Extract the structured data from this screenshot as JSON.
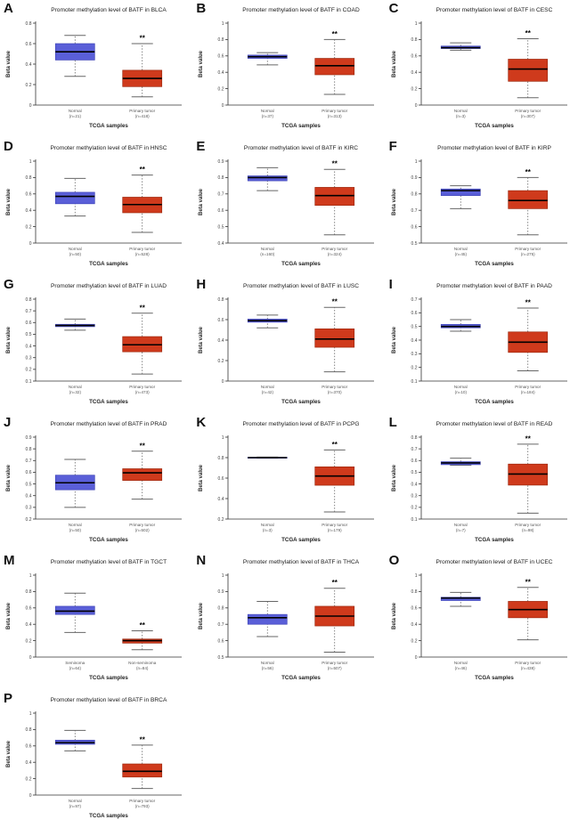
{
  "figure": {
    "title_prefix": "Promoter methylation level of BATF in",
    "ylabel": "Beta value",
    "xlabel": "TCGA samples",
    "significance_marker": "**",
    "colors": {
      "normal_fill": "#5a5fd8",
      "normal_stroke": "#3f44b8",
      "tumor_fill": "#cf3a1c",
      "tumor_stroke": "#9e2a10",
      "median_line": "#000000",
      "whisker": "#666666",
      "axis": "#333333",
      "tick_text": "#444444",
      "group_text": "#555555"
    }
  },
  "chart_data": [
    {
      "type": "box",
      "letter": "A",
      "title": "Promoter methylation level of BATF in BLCA",
      "ylabel": "Beta value",
      "xlabel": "TCGA samples",
      "ylim": [
        0,
        0.8
      ],
      "yticks": [
        0,
        0.2,
        0.4,
        0.6,
        0.8
      ],
      "groups": [
        {
          "label": "Normal",
          "n": "(n=21)",
          "role": "normal",
          "whisker_low": 0.28,
          "q1": 0.44,
          "median": 0.52,
          "q3": 0.6,
          "whisker_high": 0.68,
          "sig": ""
        },
        {
          "label": "Primary tumor",
          "n": "(n=418)",
          "role": "tumor",
          "whisker_low": 0.08,
          "q1": 0.18,
          "median": 0.26,
          "q3": 0.34,
          "whisker_high": 0.6,
          "sig": "**"
        }
      ]
    },
    {
      "type": "box",
      "letter": "B",
      "title": "Promoter methylation level of BATF in COAD",
      "ylabel": "Beta value",
      "xlabel": "TCGA samples",
      "ylim": [
        0,
        1
      ],
      "yticks": [
        0,
        0.2,
        0.4,
        0.6,
        0.8,
        1
      ],
      "groups": [
        {
          "label": "Normal",
          "n": "(n=37)",
          "role": "normal",
          "whisker_low": 0.49,
          "q1": 0.57,
          "median": 0.59,
          "q3": 0.61,
          "whisker_high": 0.64,
          "sig": ""
        },
        {
          "label": "Primary tumor",
          "n": "(n=313)",
          "role": "tumor",
          "whisker_low": 0.13,
          "q1": 0.37,
          "median": 0.48,
          "q3": 0.57,
          "whisker_high": 0.8,
          "sig": "**"
        }
      ]
    },
    {
      "type": "box",
      "letter": "C",
      "title": "Promoter methylation level of BATF in CESC",
      "ylabel": "Beta value",
      "xlabel": "TCGA samples",
      "ylim": [
        0,
        1
      ],
      "yticks": [
        0,
        0.2,
        0.4,
        0.6,
        0.8,
        1
      ],
      "groups": [
        {
          "label": "Normal",
          "n": "(n=3)",
          "role": "normal",
          "whisker_low": 0.67,
          "q1": 0.69,
          "median": 0.7,
          "q3": 0.72,
          "whisker_high": 0.76,
          "sig": ""
        },
        {
          "label": "Primary tumor",
          "n": "(n=307)",
          "role": "tumor",
          "whisker_low": 0.09,
          "q1": 0.29,
          "median": 0.44,
          "q3": 0.56,
          "whisker_high": 0.81,
          "sig": "**"
        }
      ]
    },
    {
      "type": "box",
      "letter": "D",
      "title": "Promoter methylation level of BATF in HNSC",
      "ylabel": "Beta value",
      "xlabel": "TCGA samples",
      "ylim": [
        0,
        1
      ],
      "yticks": [
        0,
        0.2,
        0.4,
        0.6,
        0.8,
        1
      ],
      "groups": [
        {
          "label": "Normal",
          "n": "(n=50)",
          "role": "normal",
          "whisker_low": 0.33,
          "q1": 0.48,
          "median": 0.57,
          "q3": 0.62,
          "whisker_high": 0.79,
          "sig": ""
        },
        {
          "label": "Primary tumor",
          "n": "(n=528)",
          "role": "tumor",
          "whisker_low": 0.13,
          "q1": 0.37,
          "median": 0.47,
          "q3": 0.56,
          "whisker_high": 0.83,
          "sig": "**"
        }
      ]
    },
    {
      "type": "box",
      "letter": "E",
      "title": "Promoter methylation level of BATF in KIRC",
      "ylabel": "Beta value",
      "xlabel": "TCGA samples",
      "ylim": [
        0.4,
        0.9
      ],
      "yticks": [
        0.4,
        0.5,
        0.6,
        0.7,
        0.8,
        0.9
      ],
      "groups": [
        {
          "label": "Normal",
          "n": "(n=160)",
          "role": "normal",
          "whisker_low": 0.72,
          "q1": 0.78,
          "median": 0.8,
          "q3": 0.81,
          "whisker_high": 0.86,
          "sig": ""
        },
        {
          "label": "Primary tumor",
          "n": "(n=324)",
          "role": "tumor",
          "whisker_low": 0.45,
          "q1": 0.63,
          "median": 0.69,
          "q3": 0.74,
          "whisker_high": 0.85,
          "sig": "**"
        }
      ]
    },
    {
      "type": "box",
      "letter": "F",
      "title": "Promoter methylation level of BATF in KIRP",
      "ylabel": "Beta value",
      "xlabel": "TCGA samples",
      "ylim": [
        0.5,
        1
      ],
      "yticks": [
        0.5,
        0.6,
        0.7,
        0.8,
        0.9,
        1
      ],
      "groups": [
        {
          "label": "Normal",
          "n": "(n=45)",
          "role": "normal",
          "whisker_low": 0.71,
          "q1": 0.79,
          "median": 0.82,
          "q3": 0.83,
          "whisker_high": 0.85,
          "sig": ""
        },
        {
          "label": "Primary tumor",
          "n": "(n=275)",
          "role": "tumor",
          "whisker_low": 0.55,
          "q1": 0.71,
          "median": 0.76,
          "q3": 0.82,
          "whisker_high": 0.9,
          "sig": "**"
        }
      ]
    },
    {
      "type": "box",
      "letter": "G",
      "title": "Promoter methylation level of BATF in LUAD",
      "ylabel": "Beta value",
      "xlabel": "TCGA samples",
      "ylim": [
        0.1,
        0.8
      ],
      "yticks": [
        0.1,
        0.2,
        0.3,
        0.4,
        0.5,
        0.6,
        0.7,
        0.8
      ],
      "groups": [
        {
          "label": "Normal",
          "n": "(n=32)",
          "role": "normal",
          "whisker_low": 0.535,
          "q1": 0.565,
          "median": 0.575,
          "q3": 0.585,
          "whisker_high": 0.63,
          "sig": ""
        },
        {
          "label": "Primary tumor",
          "n": "(n=473)",
          "role": "tumor",
          "whisker_low": 0.16,
          "q1": 0.35,
          "median": 0.41,
          "q3": 0.48,
          "whisker_high": 0.68,
          "sig": "**"
        }
      ]
    },
    {
      "type": "box",
      "letter": "H",
      "title": "Promoter methylation level of BATF in LUSC",
      "ylabel": "Beta value",
      "xlabel": "TCGA samples",
      "ylim": [
        0,
        0.8
      ],
      "yticks": [
        0,
        0.2,
        0.4,
        0.6,
        0.8
      ],
      "groups": [
        {
          "label": "Normal",
          "n": "(n=42)",
          "role": "normal",
          "whisker_low": 0.52,
          "q1": 0.575,
          "median": 0.59,
          "q3": 0.605,
          "whisker_high": 0.645,
          "sig": ""
        },
        {
          "label": "Primary tumor",
          "n": "(n=370)",
          "role": "tumor",
          "whisker_low": 0.09,
          "q1": 0.33,
          "median": 0.41,
          "q3": 0.51,
          "whisker_high": 0.72,
          "sig": "**"
        }
      ]
    },
    {
      "type": "box",
      "letter": "I",
      "title": "Promoter methylation level of BATF in PAAD",
      "ylabel": "Beta value",
      "xlabel": "TCGA samples",
      "ylim": [
        0.1,
        0.7
      ],
      "yticks": [
        0.1,
        0.2,
        0.3,
        0.4,
        0.5,
        0.6,
        0.7
      ],
      "groups": [
        {
          "label": "Normal",
          "n": "(n=10)",
          "role": "normal",
          "whisker_low": 0.465,
          "q1": 0.49,
          "median": 0.5,
          "q3": 0.515,
          "whisker_high": 0.55,
          "sig": ""
        },
        {
          "label": "Primary tumor",
          "n": "(n=184)",
          "role": "tumor",
          "whisker_low": 0.175,
          "q1": 0.31,
          "median": 0.385,
          "q3": 0.46,
          "whisker_high": 0.635,
          "sig": "**"
        }
      ]
    },
    {
      "type": "box",
      "letter": "J",
      "title": "Promoter methylation level of BATF in PRAD",
      "ylabel": "Beta value",
      "xlabel": "TCGA samples",
      "ylim": [
        0.2,
        0.9
      ],
      "yticks": [
        0.2,
        0.3,
        0.4,
        0.5,
        0.6,
        0.7,
        0.8,
        0.9
      ],
      "groups": [
        {
          "label": "Normal",
          "n": "(n=50)",
          "role": "normal",
          "whisker_low": 0.3,
          "q1": 0.45,
          "median": 0.51,
          "q3": 0.575,
          "whisker_high": 0.71,
          "sig": ""
        },
        {
          "label": "Primary tumor",
          "n": "(n=502)",
          "role": "tumor",
          "whisker_low": 0.37,
          "q1": 0.53,
          "median": 0.595,
          "q3": 0.63,
          "whisker_high": 0.78,
          "sig": "**"
        }
      ]
    },
    {
      "type": "box",
      "letter": "K",
      "title": "Promoter methylation level of BATF in PCPG",
      "ylabel": "Beta value",
      "xlabel": "TCGA samples",
      "ylim": [
        0.2,
        1
      ],
      "yticks": [
        0.2,
        0.4,
        0.6,
        0.8,
        1
      ],
      "groups": [
        {
          "label": "Normal",
          "n": "(n=3)",
          "role": "normal",
          "whisker_low": 0.795,
          "q1": 0.797,
          "median": 0.8,
          "q3": 0.803,
          "whisker_high": 0.805,
          "sig": ""
        },
        {
          "label": "Primary tumor",
          "n": "(n=179)",
          "role": "tumor",
          "whisker_low": 0.27,
          "q1": 0.53,
          "median": 0.62,
          "q3": 0.71,
          "whisker_high": 0.875,
          "sig": "**"
        }
      ]
    },
    {
      "type": "box",
      "letter": "L",
      "title": "Promoter methylation level of BATF in READ",
      "ylabel": "Beta value",
      "xlabel": "TCGA samples",
      "ylim": [
        0.1,
        0.8
      ],
      "yticks": [
        0.1,
        0.2,
        0.3,
        0.4,
        0.5,
        0.6,
        0.7,
        0.8
      ],
      "groups": [
        {
          "label": "Normal",
          "n": "(n=7)",
          "role": "normal",
          "whisker_low": 0.56,
          "q1": 0.565,
          "median": 0.58,
          "q3": 0.59,
          "whisker_high": 0.62,
          "sig": ""
        },
        {
          "label": "Primary tumor",
          "n": "(n=98)",
          "role": "tumor",
          "whisker_low": 0.15,
          "q1": 0.39,
          "median": 0.485,
          "q3": 0.57,
          "whisker_high": 0.74,
          "sig": "**"
        }
      ]
    },
    {
      "type": "box",
      "letter": "M",
      "title": "Promoter methylation level of BATF in TGCT",
      "ylabel": "Beta value",
      "xlabel": "TCGA samples",
      "ylim": [
        0,
        1
      ],
      "yticks": [
        0,
        0.2,
        0.4,
        0.6,
        0.8,
        1
      ],
      "groups": [
        {
          "label": "Seminoma",
          "n": "(n=64)",
          "role": "normal",
          "whisker_low": 0.3,
          "q1": 0.52,
          "median": 0.56,
          "q3": 0.62,
          "whisker_high": 0.78,
          "sig": ""
        },
        {
          "label": "Non-seminoma",
          "n": "(n=84)",
          "role": "tumor",
          "whisker_low": 0.09,
          "q1": 0.17,
          "median": 0.2,
          "q3": 0.22,
          "whisker_high": 0.32,
          "sig": "**"
        }
      ]
    },
    {
      "type": "box",
      "letter": "N",
      "title": "Promoter methylation level of BATF in THCA",
      "ylabel": "Beta value",
      "xlabel": "TCGA samples",
      "ylim": [
        0.5,
        1
      ],
      "yticks": [
        0.5,
        0.6,
        0.7,
        0.8,
        0.9,
        1
      ],
      "groups": [
        {
          "label": "Normal",
          "n": "(n=56)",
          "role": "normal",
          "whisker_low": 0.625,
          "q1": 0.7,
          "median": 0.74,
          "q3": 0.76,
          "whisker_high": 0.84,
          "sig": ""
        },
        {
          "label": "Primary tumor",
          "n": "(n=507)",
          "role": "tumor",
          "whisker_low": 0.53,
          "q1": 0.69,
          "median": 0.75,
          "q3": 0.81,
          "whisker_high": 0.92,
          "sig": "**"
        }
      ]
    },
    {
      "type": "box",
      "letter": "O",
      "title": "Promoter methylation level of BATF in UCEC",
      "ylabel": "Beta value",
      "xlabel": "TCGA samples",
      "ylim": [
        0,
        1
      ],
      "yticks": [
        0,
        0.2,
        0.4,
        0.6,
        0.8,
        1
      ],
      "groups": [
        {
          "label": "Normal",
          "n": "(n=46)",
          "role": "normal",
          "whisker_low": 0.62,
          "q1": 0.69,
          "median": 0.72,
          "q3": 0.73,
          "whisker_high": 0.79,
          "sig": ""
        },
        {
          "label": "Primary tumor",
          "n": "(n=438)",
          "role": "tumor",
          "whisker_low": 0.21,
          "q1": 0.48,
          "median": 0.58,
          "q3": 0.68,
          "whisker_high": 0.85,
          "sig": "**"
        }
      ]
    },
    {
      "type": "box",
      "letter": "P",
      "title": "Promoter methylation level of BATF in BRCA",
      "ylabel": "Beta value",
      "xlabel": "TCGA samples",
      "ylim": [
        0,
        1
      ],
      "yticks": [
        0,
        0.2,
        0.4,
        0.6,
        0.8,
        1
      ],
      "groups": [
        {
          "label": "Normal",
          "n": "(n=97)",
          "role": "normal",
          "whisker_low": 0.54,
          "q1": 0.62,
          "median": 0.64,
          "q3": 0.67,
          "whisker_high": 0.79,
          "sig": ""
        },
        {
          "label": "Primary tumor",
          "n": "(n=793)",
          "role": "tumor",
          "whisker_low": 0.08,
          "q1": 0.22,
          "median": 0.29,
          "q3": 0.38,
          "whisker_high": 0.61,
          "sig": "**"
        }
      ]
    }
  ]
}
